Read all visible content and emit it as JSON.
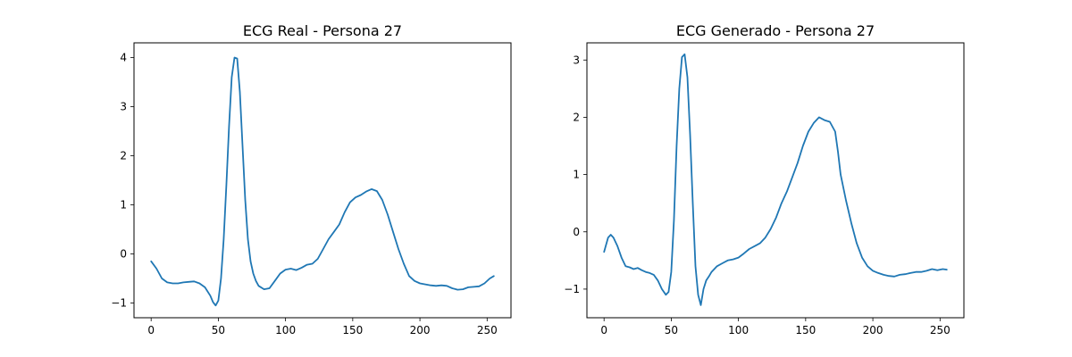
{
  "chart_data": [
    {
      "type": "line",
      "title": "ECG Real - Persona 27",
      "xlabel": "",
      "ylabel": "",
      "xlim": [
        -12.75,
        267.75
      ],
      "ylim": [
        -1.3,
        4.3
      ],
      "xticks": [
        0,
        50,
        100,
        150,
        200,
        250
      ],
      "yticks": [
        -1,
        0,
        1,
        2,
        3,
        4
      ],
      "grid": false,
      "color": "#1f77b4",
      "series": [
        {
          "x": [
            0,
            4,
            8,
            12,
            16,
            20,
            24,
            28,
            32,
            36,
            40,
            44,
            46,
            48,
            50,
            52,
            54,
            56,
            58,
            60,
            62,
            64,
            66,
            68,
            70,
            72,
            74,
            76,
            78,
            80,
            84,
            88,
            92,
            96,
            100,
            104,
            108,
            112,
            116,
            120,
            124,
            128,
            132,
            136,
            140,
            144,
            148,
            152,
            156,
            160,
            164,
            168,
            172,
            176,
            180,
            184,
            188,
            192,
            196,
            200,
            204,
            208,
            212,
            216,
            220,
            224,
            228,
            232,
            236,
            240,
            244,
            248,
            252,
            255
          ],
          "y": [
            -0.15,
            -0.3,
            -0.5,
            -0.58,
            -0.6,
            -0.6,
            -0.58,
            -0.57,
            -0.56,
            -0.6,
            -0.68,
            -0.85,
            -0.98,
            -1.05,
            -0.95,
            -0.5,
            0.3,
            1.4,
            2.6,
            3.6,
            4.0,
            3.98,
            3.3,
            2.2,
            1.1,
            0.3,
            -0.15,
            -0.4,
            -0.55,
            -0.65,
            -0.72,
            -0.7,
            -0.55,
            -0.4,
            -0.32,
            -0.3,
            -0.33,
            -0.28,
            -0.22,
            -0.2,
            -0.1,
            0.1,
            0.3,
            0.45,
            0.6,
            0.85,
            1.05,
            1.15,
            1.2,
            1.27,
            1.32,
            1.28,
            1.1,
            0.8,
            0.45,
            0.1,
            -0.2,
            -0.45,
            -0.55,
            -0.6,
            -0.62,
            -0.64,
            -0.65,
            -0.64,
            -0.65,
            -0.7,
            -0.73,
            -0.72,
            -0.68,
            -0.67,
            -0.66,
            -0.6,
            -0.5,
            -0.45
          ]
        }
      ]
    },
    {
      "type": "line",
      "title": "ECG Generado - Persona 27",
      "xlabel": "",
      "ylabel": "",
      "xlim": [
        -12.75,
        267.75
      ],
      "ylim": [
        -1.5,
        3.3
      ],
      "xticks": [
        0,
        50,
        100,
        150,
        200,
        250
      ],
      "yticks": [
        -1,
        0,
        1,
        2,
        3
      ],
      "grid": false,
      "color": "#1f77b4",
      "series": [
        {
          "x": [
            0,
            3,
            5,
            7,
            10,
            13,
            16,
            19,
            22,
            25,
            28,
            31,
            34,
            37,
            40,
            43,
            46,
            48,
            50,
            52,
            54,
            56,
            58,
            60,
            62,
            64,
            66,
            68,
            70,
            72,
            74,
            76,
            78,
            80,
            84,
            88,
            92,
            96,
            100,
            104,
            108,
            112,
            116,
            120,
            124,
            128,
            132,
            136,
            140,
            144,
            148,
            152,
            156,
            160,
            164,
            168,
            172,
            174,
            176,
            180,
            184,
            188,
            192,
            196,
            200,
            204,
            208,
            212,
            216,
            220,
            224,
            228,
            232,
            236,
            240,
            244,
            248,
            252,
            255
          ],
          "y": [
            -0.35,
            -0.1,
            -0.05,
            -0.1,
            -0.25,
            -0.45,
            -0.6,
            -0.62,
            -0.65,
            -0.63,
            -0.67,
            -0.7,
            -0.72,
            -0.75,
            -0.85,
            -1.0,
            -1.1,
            -1.05,
            -0.7,
            0.2,
            1.5,
            2.5,
            3.05,
            3.1,
            2.7,
            1.7,
            0.5,
            -0.6,
            -1.1,
            -1.28,
            -1.0,
            -0.85,
            -0.78,
            -0.7,
            -0.6,
            -0.55,
            -0.5,
            -0.48,
            -0.45,
            -0.38,
            -0.3,
            -0.25,
            -0.2,
            -0.1,
            0.05,
            0.25,
            0.5,
            0.7,
            0.95,
            1.2,
            1.5,
            1.75,
            1.9,
            2.0,
            1.95,
            1.92,
            1.75,
            1.4,
            1.0,
            0.55,
            0.15,
            -0.2,
            -0.45,
            -0.6,
            -0.68,
            -0.72,
            -0.75,
            -0.77,
            -0.78,
            -0.75,
            -0.74,
            -0.72,
            -0.7,
            -0.7,
            -0.68,
            -0.65,
            -0.67,
            -0.65,
            -0.66
          ]
        }
      ]
    }
  ]
}
